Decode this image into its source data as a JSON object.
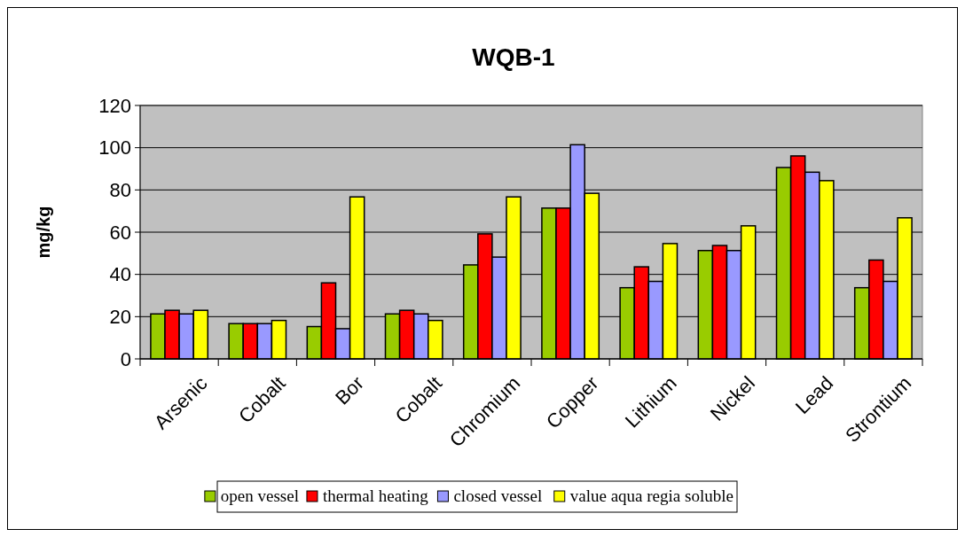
{
  "chart_data": {
    "type": "bar",
    "title": "WQB-1",
    "ylabel": "mg/kg",
    "categories": [
      "Arsenic",
      "Cobalt",
      "Bor",
      "Cobalt",
      "Chromium",
      "Copper",
      "Lithium",
      "Nickel",
      "Lead",
      "Strontium"
    ],
    "series": [
      {
        "name": "open vessel",
        "color": "#99cc00",
        "values": [
          21.3,
          16.7,
          15.3,
          21.3,
          44.5,
          71.4,
          33.7,
          51.3,
          90.6,
          33.7
        ]
      },
      {
        "name": "thermal heating",
        "color": "#ff0000",
        "values": [
          23,
          16.7,
          36,
          23,
          59.2,
          71.4,
          43.6,
          53.7,
          96.1,
          46.8
        ]
      },
      {
        "name": "closed vessel",
        "color": "#9999ff",
        "values": [
          21.3,
          16.7,
          14.3,
          21.3,
          48.2,
          101.4,
          36.7,
          51.3,
          88.4,
          36.7
        ]
      },
      {
        "name": "value aqua regia soluble",
        "color": "#ffff00",
        "values": [
          23,
          18.2,
          76.7,
          18.2,
          76.7,
          78.4,
          54.6,
          63,
          84.4,
          66.8
        ]
      }
    ],
    "ylim": [
      0,
      120
    ],
    "yticks": [
      0,
      20,
      40,
      60,
      80,
      100,
      120
    ],
    "grid": "y",
    "legend": "bottom"
  }
}
